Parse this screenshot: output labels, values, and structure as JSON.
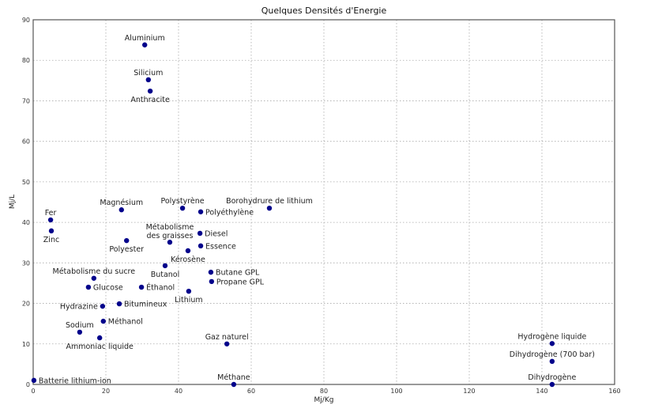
{
  "chart_data": {
    "type": "scatter",
    "title": "Quelques Densités d'Energie",
    "xlabel": "Mj/Kg",
    "ylabel": "Mj/L",
    "xlim": [
      0,
      160
    ],
    "ylim": [
      0,
      90
    ],
    "xticks": [
      0,
      20,
      40,
      60,
      80,
      100,
      120,
      140,
      160
    ],
    "yticks": [
      0,
      10,
      20,
      30,
      40,
      50,
      60,
      70,
      80,
      90
    ],
    "grid": true,
    "marker_color": "#00008b",
    "points": [
      {
        "label": "Aluminium",
        "x": 30.7,
        "y": 83.8,
        "pos": "above"
      },
      {
        "label": "Silicium",
        "x": 31.7,
        "y": 75.2,
        "pos": "above"
      },
      {
        "label": "Anthracite",
        "x": 32.2,
        "y": 72.4,
        "pos": "below"
      },
      {
        "label": "Magnésium",
        "x": 24.3,
        "y": 43.1,
        "pos": "above"
      },
      {
        "label": "Polystyrène",
        "x": 41.1,
        "y": 43.5,
        "pos": "above"
      },
      {
        "label": "Polyéthylène",
        "x": 46.1,
        "y": 42.6,
        "pos": "right"
      },
      {
        "label": "Borohydrure de lithium",
        "x": 65.0,
        "y": 43.5,
        "pos": "above"
      },
      {
        "label": "Fer",
        "x": 4.8,
        "y": 40.6,
        "pos": "above"
      },
      {
        "label": "Zinc",
        "x": 5.0,
        "y": 37.9,
        "pos": "below"
      },
      {
        "label": "Polyester",
        "x": 25.7,
        "y": 35.5,
        "pos": "below"
      },
      {
        "label": "Métabolisme des graisses",
        "x": 37.6,
        "y": 35.1,
        "pos": "above2"
      },
      {
        "label": "Diesel",
        "x": 45.9,
        "y": 37.3,
        "pos": "right"
      },
      {
        "label": "Essence",
        "x": 46.1,
        "y": 34.2,
        "pos": "right"
      },
      {
        "label": "Kérosène",
        "x": 42.6,
        "y": 33.0,
        "pos": "below"
      },
      {
        "label": "Butanol",
        "x": 36.3,
        "y": 29.3,
        "pos": "below"
      },
      {
        "label": "Butane GPL",
        "x": 48.9,
        "y": 27.7,
        "pos": "right"
      },
      {
        "label": "Propane GPL",
        "x": 49.1,
        "y": 25.4,
        "pos": "right"
      },
      {
        "label": "Métabolisme du sucre",
        "x": 16.7,
        "y": 26.2,
        "pos": "above"
      },
      {
        "label": "Glucose",
        "x": 15.2,
        "y": 24.0,
        "pos": "right"
      },
      {
        "label": "Éthanol",
        "x": 29.8,
        "y": 24.0,
        "pos": "right"
      },
      {
        "label": "Lithium",
        "x": 42.8,
        "y": 23.0,
        "pos": "below"
      },
      {
        "label": "Hydrazine",
        "x": 19.1,
        "y": 19.3,
        "pos": "left"
      },
      {
        "label": "Bitumineux",
        "x": 23.7,
        "y": 19.9,
        "pos": "right"
      },
      {
        "label": "Méthanol",
        "x": 19.3,
        "y": 15.6,
        "pos": "right"
      },
      {
        "label": "Sodium",
        "x": 12.8,
        "y": 12.9,
        "pos": "above"
      },
      {
        "label": "Ammoniac liquide",
        "x": 18.3,
        "y": 11.5,
        "pos": "below"
      },
      {
        "label": "Gaz naturel",
        "x": 53.3,
        "y": 10.0,
        "pos": "above"
      },
      {
        "label": "Batterie lithium-ion",
        "x": 0.2,
        "y": 1.0,
        "pos": "right"
      },
      {
        "label": "Méthane",
        "x": 55.2,
        "y": 0.0,
        "pos": "above"
      },
      {
        "label": "Hydrogène liquide",
        "x": 142.8,
        "y": 10.1,
        "pos": "above"
      },
      {
        "label": "Dihydrogène (700 bar)",
        "x": 142.8,
        "y": 5.7,
        "pos": "above"
      },
      {
        "label": "Dihydrogène",
        "x": 142.8,
        "y": 0.0,
        "pos": "above"
      }
    ]
  }
}
